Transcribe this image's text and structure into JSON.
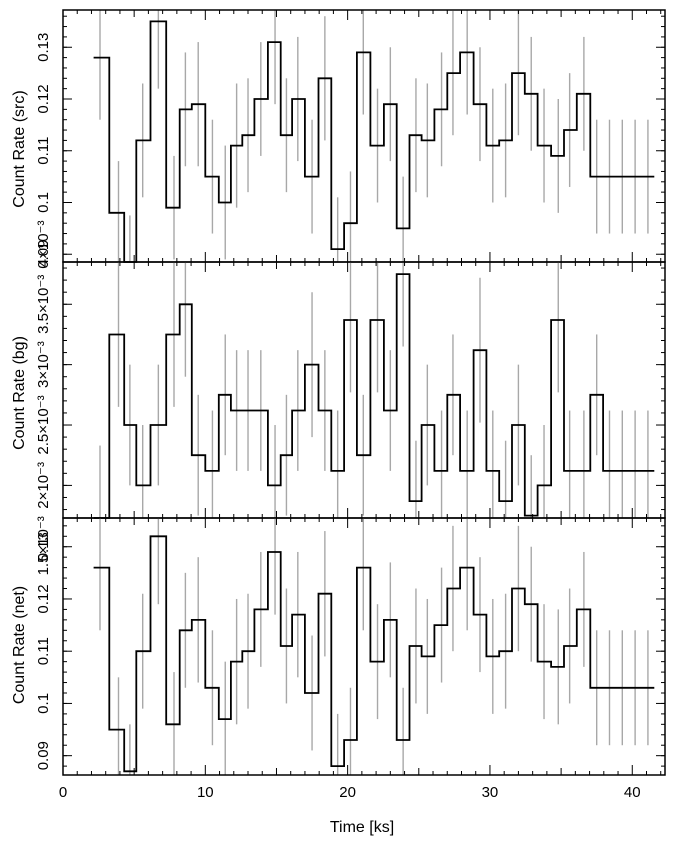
{
  "chart_data": [
    {
      "type": "line",
      "ylabel": "Count Rate (src)",
      "xlim": [
        0,
        42.3
      ],
      "ylim": [
        0.0885,
        0.1372
      ],
      "yticks": [
        {
          "v": 0.09,
          "label": "0.09"
        },
        {
          "v": 0.1,
          "label": "0.1"
        },
        {
          "v": 0.11,
          "label": "0.11"
        },
        {
          "v": 0.12,
          "label": "0.12"
        },
        {
          "v": 0.13,
          "label": "0.13"
        }
      ],
      "x": [
        2.6,
        3.9,
        4.7,
        5.6,
        6.7,
        7.8,
        8.6,
        9.5,
        10.5,
        11.4,
        12.2,
        13.0,
        13.9,
        14.9,
        15.7,
        16.5,
        17.5,
        18.4,
        19.3,
        20.2,
        21.1,
        22.1,
        23.0,
        23.9,
        24.8,
        25.6,
        26.6,
        27.4,
        28.4,
        29.3,
        30.2,
        31.1,
        32.0,
        32.9,
        33.8,
        34.8,
        35.6,
        36.6,
        37.5,
        38.4,
        39.3,
        40.2,
        41.1
      ],
      "y": [
        0.128,
        0.098,
        0.0885,
        0.112,
        0.135,
        0.099,
        0.118,
        0.119,
        0.105,
        0.1,
        0.111,
        0.113,
        0.12,
        0.131,
        0.113,
        0.12,
        0.105,
        0.124,
        0.091,
        0.096,
        0.129,
        0.111,
        0.119,
        0.095,
        0.113,
        0.112,
        0.118,
        0.125,
        0.129,
        0.119,
        0.111,
        0.112,
        0.125,
        0.121,
        0.111,
        0.109,
        0.114,
        0.121,
        0.105,
        0.105,
        0.105,
        0.105,
        0.105
      ],
      "err": [
        0.012,
        0.01,
        0.009,
        0.011,
        0.013,
        0.01,
        0.011,
        0.012,
        0.011,
        0.011,
        0.012,
        0.011,
        0.011,
        0.012,
        0.011,
        0.012,
        0.011,
        0.012,
        0.01,
        0.01,
        0.012,
        0.011,
        0.011,
        0.01,
        0.011,
        0.011,
        0.011,
        0.012,
        0.012,
        0.011,
        0.011,
        0.011,
        0.012,
        0.011,
        0.011,
        0.011,
        0.011,
        0.011,
        0.011,
        0.011,
        0.011,
        0.011,
        0.011
      ]
    },
    {
      "type": "line",
      "ylabel": "Count Rate (bg)",
      "xlim": [
        0,
        42.3
      ],
      "ylim": [
        0.00173,
        0.00385
      ],
      "yticks": [
        {
          "v": 0.0015,
          "label": "1.5×10⁻³"
        },
        {
          "v": 0.002,
          "label": "2×10⁻³"
        },
        {
          "v": 0.0025,
          "label": "2.5×10⁻³"
        },
        {
          "v": 0.003,
          "label": "3×10⁻³"
        },
        {
          "v": 0.0035,
          "label": "3.5×10⁻³"
        },
        {
          "v": 0.004,
          "label": "4×10⁻³"
        }
      ],
      "x": [
        2.6,
        3.9,
        4.7,
        5.6,
        6.7,
        7.8,
        8.6,
        9.5,
        10.5,
        11.4,
        12.2,
        13.0,
        13.9,
        14.9,
        15.7,
        16.5,
        17.5,
        18.4,
        19.3,
        20.2,
        21.1,
        22.1,
        23.0,
        23.9,
        24.8,
        25.6,
        26.6,
        27.4,
        28.4,
        29.3,
        30.2,
        31.1,
        32.0,
        32.9,
        33.8,
        34.8,
        35.6,
        36.6,
        37.5,
        38.4,
        39.3,
        40.2,
        41.1
      ],
      "y": [
        0.00173,
        0.00325,
        0.0025,
        0.002,
        0.0025,
        0.00325,
        0.0035,
        0.00225,
        0.00212,
        0.00275,
        0.00262,
        0.00262,
        0.00262,
        0.002,
        0.00225,
        0.00262,
        0.003,
        0.00262,
        0.00212,
        0.00337,
        0.00225,
        0.00337,
        0.00262,
        0.00375,
        0.00187,
        0.0025,
        0.00212,
        0.00275,
        0.00212,
        0.00312,
        0.00212,
        0.00187,
        0.0025,
        0.00175,
        0.002,
        0.00337,
        0.00212,
        0.00212,
        0.00275,
        0.00212,
        0.00212,
        0.00212,
        0.00212
      ],
      "err": [
        0.0006,
        0.0006,
        0.0005,
        0.0005,
        0.0005,
        0.0006,
        0.0006,
        0.0005,
        0.0005,
        0.0005,
        0.0005,
        0.0005,
        0.0005,
        0.0005,
        0.0005,
        0.0005,
        0.0006,
        0.0005,
        0.0005,
        0.0006,
        0.0005,
        0.0006,
        0.0005,
        0.0006,
        0.0005,
        0.0005,
        0.0005,
        0.0005,
        0.0005,
        0.0006,
        0.0005,
        0.0005,
        0.0005,
        0.0005,
        0.0005,
        0.0006,
        0.0005,
        0.0005,
        0.0005,
        0.0005,
        0.0005,
        0.0005,
        0.0005
      ]
    },
    {
      "type": "line",
      "ylabel": "Count Rate (net)",
      "xlabel": "Time [ks]",
      "xlim": [
        0,
        42.3
      ],
      "ylim": [
        0.0863,
        0.1355
      ],
      "yticks": [
        {
          "v": 0.09,
          "label": "0.09"
        },
        {
          "v": 0.1,
          "label": "0.1"
        },
        {
          "v": 0.11,
          "label": "0.11"
        },
        {
          "v": 0.12,
          "label": "0.12"
        },
        {
          "v": 0.13,
          "label": "0.13"
        }
      ],
      "xticks": [
        0,
        10,
        20,
        30,
        40
      ],
      "x": [
        2.6,
        3.9,
        4.7,
        5.6,
        6.7,
        7.8,
        8.6,
        9.5,
        10.5,
        11.4,
        12.2,
        13.0,
        13.9,
        14.9,
        15.7,
        16.5,
        17.5,
        18.4,
        19.3,
        20.2,
        21.1,
        22.1,
        23.0,
        23.9,
        24.8,
        25.6,
        26.6,
        27.4,
        28.4,
        29.3,
        30.2,
        31.1,
        32.0,
        32.9,
        33.8,
        34.8,
        35.6,
        36.6,
        37.5,
        38.4,
        39.3,
        40.2,
        41.1
      ],
      "y": [
        0.126,
        0.095,
        0.087,
        0.11,
        0.132,
        0.096,
        0.114,
        0.116,
        0.103,
        0.097,
        0.108,
        0.11,
        0.118,
        0.129,
        0.111,
        0.117,
        0.102,
        0.121,
        0.088,
        0.093,
        0.126,
        0.108,
        0.116,
        0.093,
        0.111,
        0.109,
        0.115,
        0.122,
        0.126,
        0.117,
        0.109,
        0.11,
        0.122,
        0.119,
        0.108,
        0.107,
        0.111,
        0.118,
        0.103,
        0.103,
        0.103,
        0.103,
        0.103
      ],
      "err": [
        0.012,
        0.01,
        0.009,
        0.011,
        0.013,
        0.01,
        0.011,
        0.012,
        0.011,
        0.011,
        0.012,
        0.011,
        0.011,
        0.012,
        0.011,
        0.012,
        0.011,
        0.012,
        0.01,
        0.01,
        0.012,
        0.011,
        0.011,
        0.01,
        0.011,
        0.011,
        0.011,
        0.012,
        0.012,
        0.011,
        0.011,
        0.011,
        0.012,
        0.011,
        0.011,
        0.011,
        0.011,
        0.011,
        0.011,
        0.011,
        0.011,
        0.011,
        0.011
      ]
    }
  ]
}
